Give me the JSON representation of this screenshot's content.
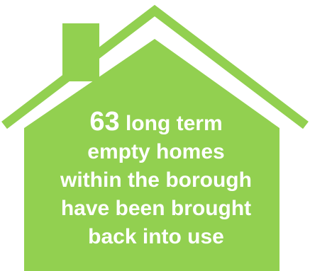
{
  "colors": {
    "house_fill": "#92D050",
    "outline": "#92D050",
    "background": "#FFFFFF",
    "text": "#FFFFFF"
  },
  "infographic": {
    "statistic": "63",
    "line1_rest": "long term",
    "line2": "empty homes",
    "line3": "within the borough",
    "line4": "have been brought",
    "line5": "back into use"
  }
}
